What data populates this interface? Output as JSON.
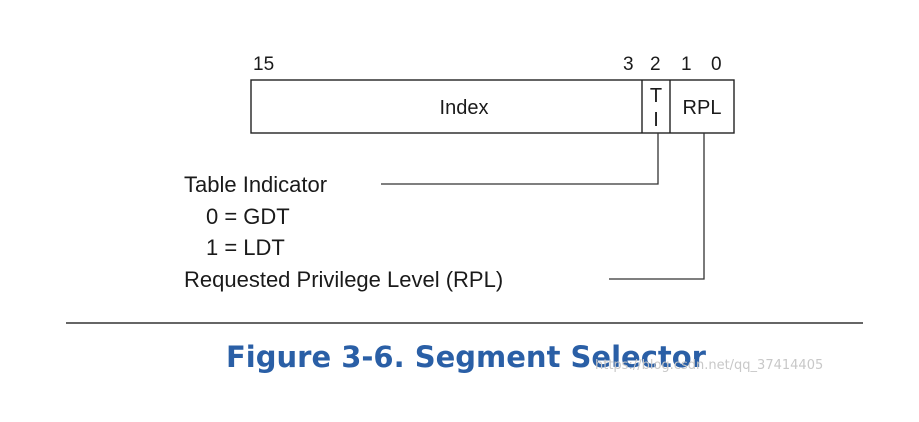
{
  "bit_labels": {
    "b15": "15",
    "b3": "3",
    "b2": "2",
    "b1": "1",
    "b0": "0"
  },
  "fields": {
    "index": "Index",
    "ti_top": "T",
    "ti_bottom": "I",
    "rpl": "RPL"
  },
  "descriptions": {
    "table_indicator": "Table Indicator",
    "gdt": "0 = GDT",
    "ldt": "1 = LDT",
    "rpl": "Requested Privilege Level (RPL)"
  },
  "caption": "Figure 3-6.  Segment Selector",
  "watermark": "https://blog.csdn.net/qq_37414405"
}
